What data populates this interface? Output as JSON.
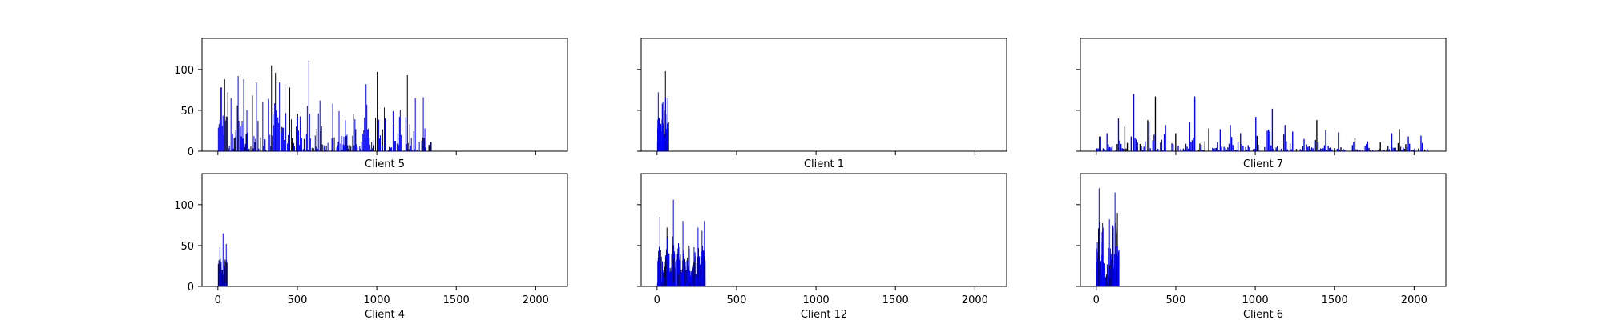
{
  "colors": {
    "primary_bar": "#0000ff",
    "secondary_bar": "#000000",
    "axis": "#000000",
    "background": "#ffffff"
  },
  "chart_data": [
    {
      "type": "bar",
      "title": "Client 5",
      "xlim": [
        -100,
        2200
      ],
      "ylim": [
        0,
        138
      ],
      "xticks": [
        0,
        500,
        1000,
        1500,
        2000
      ],
      "yticks": [
        0,
        50,
        100
      ],
      "show_xtick_labels": false,
      "show_ytick_labels": true,
      "x_extent": [
        0,
        1340
      ],
      "peaks": [
        [
          18,
          78
        ],
        [
          40,
          88
        ],
        [
          60,
          72
        ],
        [
          80,
          65
        ],
        [
          125,
          92
        ],
        [
          160,
          88
        ],
        [
          180,
          50
        ],
        [
          215,
          68
        ],
        [
          240,
          84
        ],
        [
          280,
          60
        ],
        [
          315,
          64
        ],
        [
          335,
          105
        ],
        [
          360,
          96
        ],
        [
          385,
          84
        ],
        [
          420,
          82
        ],
        [
          450,
          78
        ],
        [
          500,
          46
        ],
        [
          570,
          111
        ],
        [
          640,
          62
        ],
        [
          720,
          58
        ],
        [
          760,
          49
        ],
        [
          800,
          38
        ],
        [
          850,
          45
        ],
        [
          930,
          82
        ],
        [
          1000,
          97
        ],
        [
          1050,
          40
        ],
        [
          1100,
          49
        ],
        [
          1140,
          42
        ],
        [
          1190,
          93
        ],
        [
          1240,
          65
        ],
        [
          1290,
          66
        ]
      ]
    },
    {
      "type": "bar",
      "title": "Client 1",
      "xlim": [
        -100,
        2200
      ],
      "ylim": [
        0,
        138
      ],
      "xticks": [
        0,
        500,
        1000,
        1500,
        2000
      ],
      "yticks": [
        0,
        50,
        100
      ],
      "show_xtick_labels": false,
      "show_ytick_labels": false,
      "x_extent": [
        0,
        70
      ],
      "peaks": [
        [
          5,
          72
        ],
        [
          30,
          58
        ],
        [
          50,
          98
        ],
        [
          65,
          65
        ]
      ]
    },
    {
      "type": "bar",
      "title": "Client 7",
      "xlim": [
        -100,
        2200
      ],
      "ylim": [
        0,
        138
      ],
      "xticks": [
        0,
        500,
        1000,
        1500,
        2000
      ],
      "yticks": [
        0,
        50,
        100
      ],
      "show_xtick_labels": false,
      "show_ytick_labels": false,
      "x_extent": [
        0,
        2080
      ],
      "peaks": [
        [
          20,
          18
        ],
        [
          60,
          22
        ],
        [
          130,
          40
        ],
        [
          175,
          30
        ],
        [
          230,
          70
        ],
        [
          320,
          38
        ],
        [
          365,
          67
        ],
        [
          430,
          32
        ],
        [
          490,
          22
        ],
        [
          580,
          36
        ],
        [
          610,
          67
        ],
        [
          700,
          28
        ],
        [
          770,
          27
        ],
        [
          840,
          32
        ],
        [
          900,
          22
        ],
        [
          1000,
          42
        ],
        [
          1070,
          25
        ],
        [
          1100,
          52
        ],
        [
          1180,
          32
        ],
        [
          1230,
          24
        ],
        [
          1300,
          15
        ],
        [
          1380,
          38
        ],
        [
          1440,
          26
        ],
        [
          1520,
          23
        ],
        [
          1620,
          16
        ],
        [
          1700,
          12
        ],
        [
          1780,
          11
        ],
        [
          1850,
          22
        ],
        [
          1900,
          27
        ],
        [
          1960,
          18
        ],
        [
          2040,
          19
        ]
      ]
    },
    {
      "type": "bar",
      "title": "Client 4",
      "xlim": [
        -100,
        2200
      ],
      "ylim": [
        0,
        138
      ],
      "xticks": [
        0,
        500,
        1000,
        1500,
        2000
      ],
      "yticks": [
        0,
        50,
        100
      ],
      "show_xtick_labels": true,
      "show_ytick_labels": true,
      "x_extent": [
        0,
        55
      ],
      "peaks": [
        [
          10,
          48
        ],
        [
          30,
          65
        ],
        [
          50,
          52
        ]
      ]
    },
    {
      "type": "bar",
      "title": "Client 12",
      "xlim": [
        -100,
        2200
      ],
      "ylim": [
        0,
        138
      ],
      "xticks": [
        0,
        500,
        1000,
        1500,
        2000
      ],
      "yticks": [
        0,
        50,
        100
      ],
      "show_xtick_labels": true,
      "show_ytick_labels": false,
      "x_extent": [
        0,
        300
      ],
      "peaks": [
        [
          15,
          85
        ],
        [
          60,
          72
        ],
        [
          100,
          106
        ],
        [
          140,
          48
        ],
        [
          160,
          80
        ],
        [
          200,
          46
        ],
        [
          230,
          48
        ],
        [
          255,
          72
        ],
        [
          280,
          68
        ],
        [
          295,
          80
        ]
      ]
    },
    {
      "type": "bar",
      "title": "Client 6",
      "xlim": [
        -100,
        2200
      ],
      "ylim": [
        0,
        138
      ],
      "xticks": [
        0,
        500,
        1000,
        1500,
        2000
      ],
      "yticks": [
        0,
        50,
        100
      ],
      "show_xtick_labels": true,
      "show_ytick_labels": false,
      "x_extent": [
        0,
        140
      ],
      "peaks": [
        [
          15,
          120
        ],
        [
          40,
          72
        ],
        [
          80,
          82
        ],
        [
          100,
          65
        ],
        [
          115,
          115
        ],
        [
          130,
          90
        ]
      ]
    }
  ]
}
